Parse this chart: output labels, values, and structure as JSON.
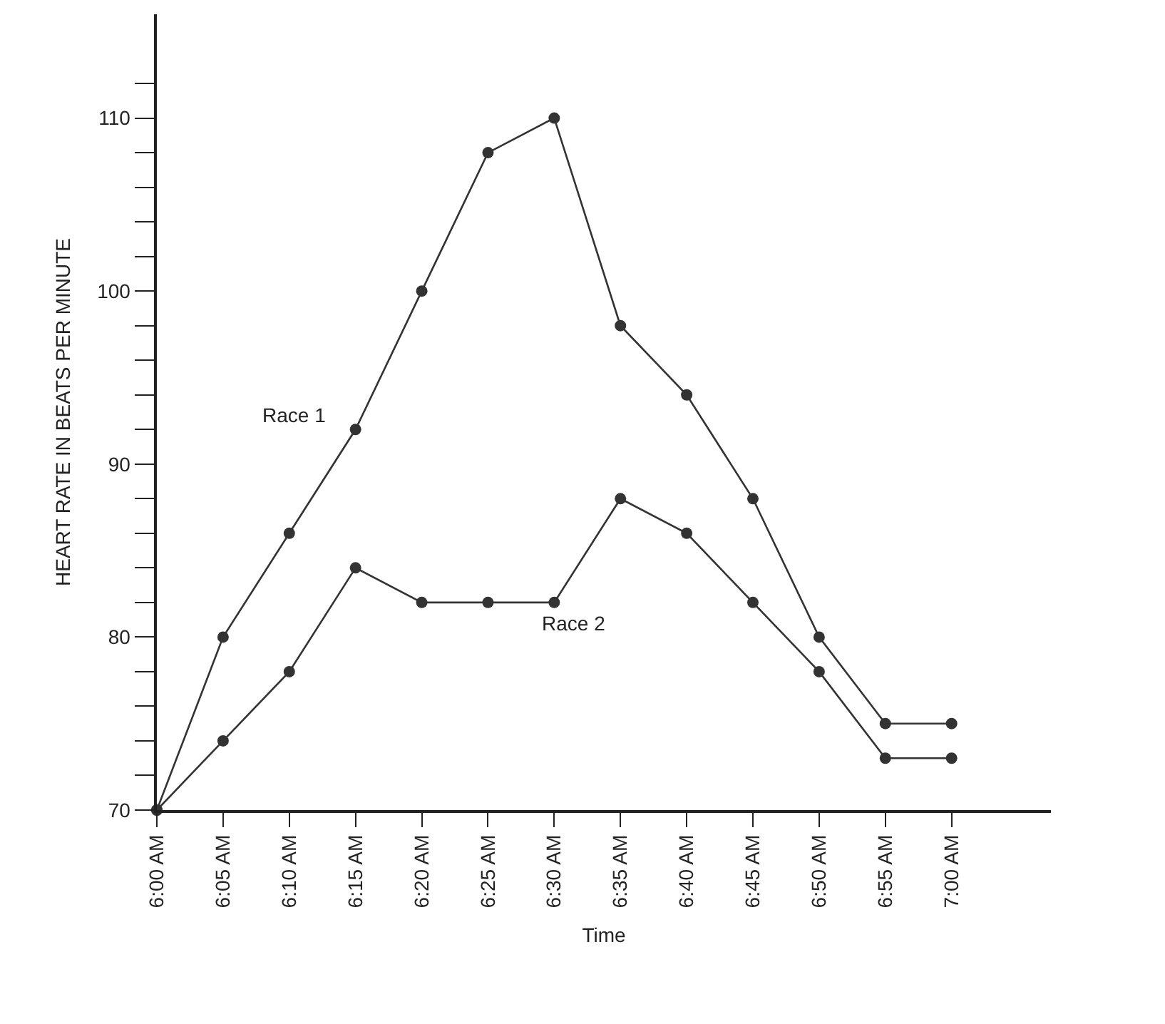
{
  "chart_data": {
    "type": "line",
    "xlabel": "Time",
    "ylabel": "HEART RATE IN BEATS PER MINUTE",
    "categories": [
      "6:00 AM",
      "6:05 AM",
      "6:10 AM",
      "6:15 AM",
      "6:20 AM",
      "6:25 AM",
      "6:30 AM",
      "6:35 AM",
      "6:40 AM",
      "6:45 AM",
      "6:50 AM",
      "6:55 AM",
      "7:00 AM"
    ],
    "series": [
      {
        "name": "Race 1",
        "color": "#333333",
        "values": [
          70,
          80,
          86,
          92,
          100,
          108,
          110,
          98,
          94,
          88,
          80,
          75,
          75
        ]
      },
      {
        "name": "Race 2",
        "color": "#333333",
        "values": [
          70,
          74,
          78,
          84,
          82,
          82,
          82,
          88,
          86,
          82,
          78,
          73,
          73
        ]
      }
    ],
    "ylim": [
      70,
      116
    ],
    "yticks": [
      70,
      {
        "value": 72,
        "label": null
      },
      {
        "value": 74,
        "label": null
      },
      {
        "value": 76,
        "label": null
      },
      {
        "value": 78,
        "label": null
      },
      80,
      {
        "value": 82,
        "label": null
      },
      {
        "value": 84,
        "label": null
      },
      {
        "value": 86,
        "label": null
      },
      {
        "value": 88,
        "label": null
      },
      90,
      {
        "value": 92,
        "label": null
      },
      {
        "value": 94,
        "label": null
      },
      {
        "value": 96,
        "label": null
      },
      {
        "value": 98,
        "label": null
      },
      100,
      {
        "value": 102,
        "label": null
      },
      {
        "value": 104,
        "label": null
      },
      {
        "value": 106,
        "label": null
      },
      {
        "value": 108,
        "label": null
      },
      110,
      {
        "value": 112,
        "label": null
      }
    ],
    "legend": false,
    "marker": "circle",
    "line_style": "solid"
  }
}
